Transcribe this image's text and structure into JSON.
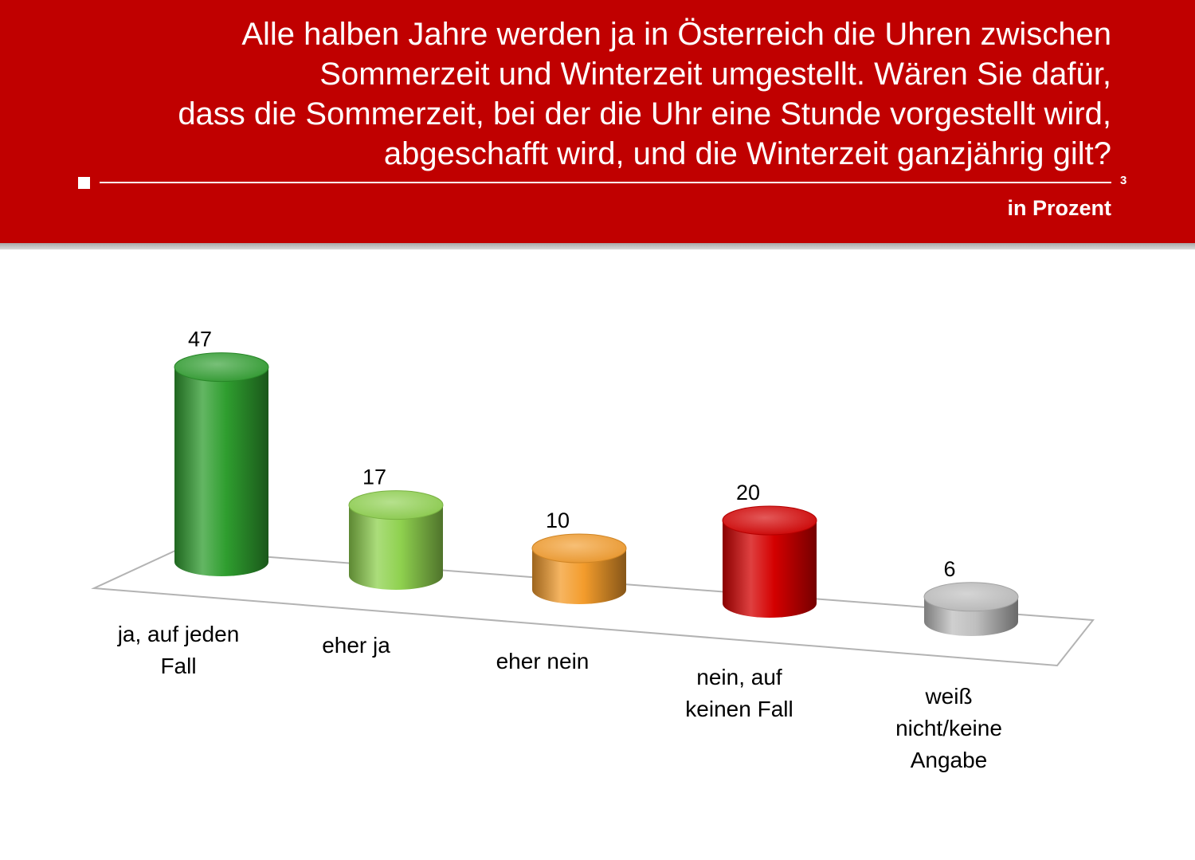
{
  "header": {
    "question_lines": [
      "Alle halben Jahre werden ja in Österreich die Uhren zwischen",
      "Sommerzeit und Winterzeit umgestellt. Wären Sie dafür,",
      "dass die Sommerzeit, bei der die Uhr eine Stunde vorgestellt wird,",
      "abgeschafft wird, und die Winterzeit ganzjährig gilt?"
    ],
    "page_number": "3",
    "unit_label": "in Prozent",
    "background_color": "#c00000"
  },
  "chart_data": {
    "type": "bar",
    "style": "3d-cylinder",
    "title": "",
    "categories": [
      "ja, auf jeden Fall",
      "eher ja",
      "eher nein",
      "nein, auf keinen Fall",
      "weiß nicht/keine Angabe"
    ],
    "category_lines": [
      [
        "ja, auf jeden",
        "Fall"
      ],
      [
        "eher ja"
      ],
      [
        "eher nein"
      ],
      [
        "nein, auf",
        "keinen Fall"
      ],
      [
        "weiß",
        "nicht/keine",
        "Angabe"
      ]
    ],
    "values": [
      47,
      17,
      10,
      20,
      6
    ],
    "value_labels": [
      "47",
      "17",
      "10",
      "20",
      "6"
    ],
    "colors": [
      "#2f9e2f",
      "#8fd14f",
      "#f39c2c",
      "#d40000",
      "#bfbfbf"
    ],
    "grid": false,
    "legend": "none"
  }
}
